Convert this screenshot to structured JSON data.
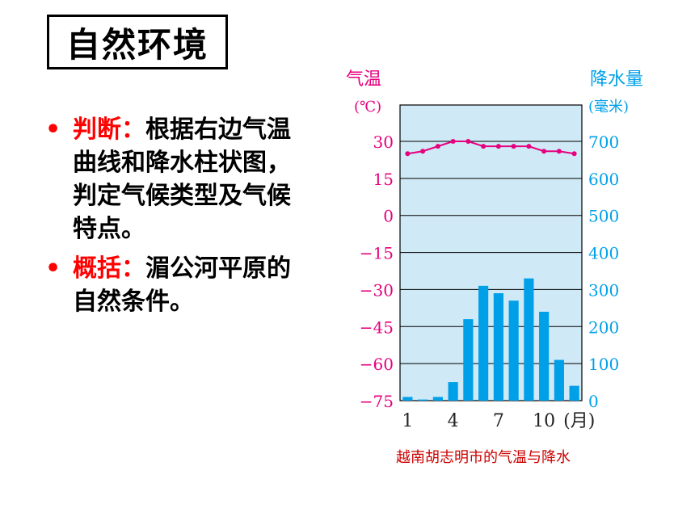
{
  "slide": {
    "title": "自然环境",
    "bullets": [
      {
        "keyword": "判断：",
        "text": "根据右边气温曲线和降水柱状图，判定气候类型及气候特点。"
      },
      {
        "keyword": "概括：",
        "text": "湄公河平原的自然条件。"
      }
    ],
    "bullet_glyph": "•"
  },
  "chart_data": {
    "type": "bar+line",
    "title": "越南胡志明市的气温与降水",
    "months": [
      1,
      2,
      3,
      4,
      5,
      6,
      7,
      8,
      9,
      10,
      11,
      12
    ],
    "x_tick_labels": [
      "1",
      "4",
      "7",
      "10"
    ],
    "x_unit": "(月)",
    "temperature": {
      "label": "气温",
      "unit": "(℃)",
      "values": [
        25,
        26,
        28,
        30,
        30,
        28,
        28,
        28,
        28,
        26,
        26,
        25
      ],
      "ylim": [
        -75,
        30
      ],
      "ticks": [
        30,
        15,
        0,
        -15,
        -30,
        -45,
        -60,
        -75
      ],
      "tick_labels": [
        "30",
        "15",
        "0",
        "−15",
        "−30",
        "−45",
        "−60",
        "−75"
      ],
      "color": "#e6007e"
    },
    "precipitation": {
      "label": "降水量",
      "unit": "(毫米)",
      "values": [
        10,
        3,
        10,
        50,
        220,
        310,
        290,
        270,
        330,
        240,
        110,
        40
      ],
      "ylim": [
        0,
        700
      ],
      "ticks": [
        700,
        600,
        500,
        400,
        300,
        200,
        100,
        0
      ],
      "tick_labels": [
        "700",
        "600",
        "500",
        "400",
        "300",
        "200",
        "100",
        "0"
      ],
      "color": "#00a0e9"
    },
    "plot_background": "#cfe9f6",
    "grid": true
  }
}
